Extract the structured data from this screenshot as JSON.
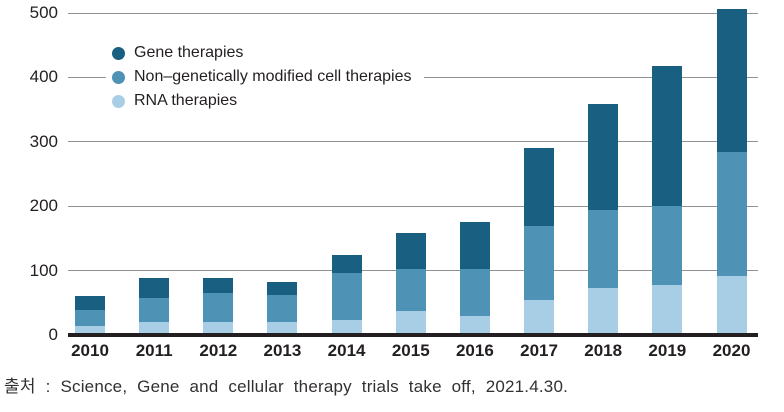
{
  "legend": {
    "items": [
      {
        "label": "Gene therapies",
        "color": "#185f82"
      },
      {
        "label": "Non–genetically modified cell therapies",
        "color": "#4e93b5"
      },
      {
        "label": "RNA therapies",
        "color": "#a8cee6"
      }
    ]
  },
  "source_caption": "출처 : Science, Gene and cellular therapy trials take off, 2021.4.30.",
  "chart_data": {
    "type": "bar",
    "stacked": true,
    "title": "",
    "xlabel": "",
    "ylabel": "",
    "categories": [
      "2010",
      "2011",
      "2012",
      "2013",
      "2014",
      "2015",
      "2016",
      "2017",
      "2018",
      "2019",
      "2020"
    ],
    "series": [
      {
        "name": "RNA therapies",
        "color": "#a8cee6",
        "values": [
          14,
          20,
          20,
          20,
          24,
          38,
          30,
          54,
          73,
          78,
          92
        ]
      },
      {
        "name": "Non–genetically modified cell therapies",
        "color": "#4e93b5",
        "values": [
          25,
          38,
          46,
          42,
          73,
          65,
          72,
          115,
          121,
          122,
          192
        ]
      },
      {
        "name": "Gene therapies",
        "color": "#185f82",
        "values": [
          21,
          30,
          22,
          20,
          28,
          55,
          74,
          121,
          165,
          218,
          222
        ]
      }
    ],
    "totals": [
      60,
      88,
      88,
      82,
      125,
      158,
      176,
      290,
      359,
      418,
      506
    ],
    "ylim": [
      0,
      500
    ],
    "yticks": [
      0,
      100,
      200,
      300,
      400,
      500
    ],
    "grid": true,
    "legend_position": "top-left",
    "axis_color": "#231f20",
    "gridline_color": "#8f9194"
  }
}
